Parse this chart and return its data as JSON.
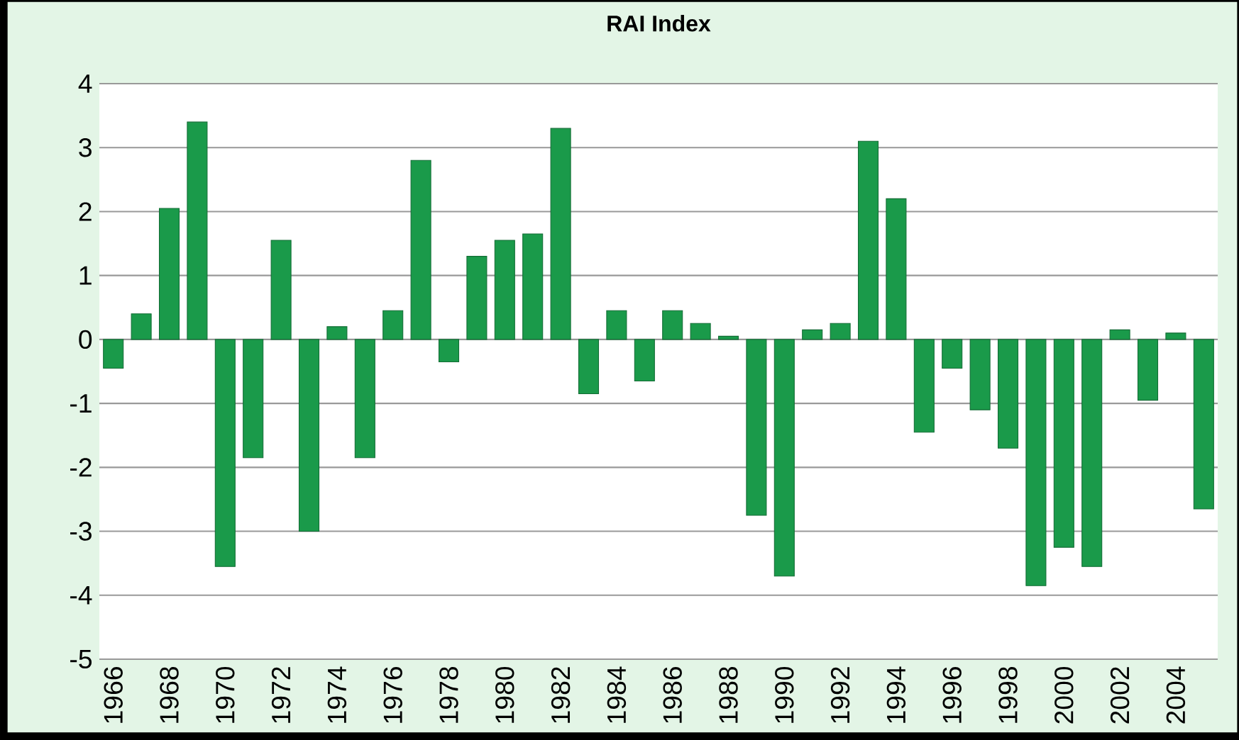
{
  "chart_data": {
    "type": "bar",
    "title": "RAI Index",
    "categories": [
      "1966",
      null,
      "1968",
      null,
      "1970",
      null,
      "1972",
      null,
      "1974",
      null,
      "1976",
      null,
      "1978",
      null,
      "1980",
      null,
      "1982",
      null,
      "1984",
      null,
      "1986",
      null,
      "1988",
      null,
      "1990",
      null,
      "1992",
      null,
      "1994",
      null,
      "1996",
      null,
      "1998",
      null,
      "2000",
      null,
      "2002",
      null,
      "2004",
      null
    ],
    "values": [
      -0.45,
      0.4,
      2.05,
      3.4,
      -3.55,
      -1.85,
      1.55,
      -3.0,
      0.2,
      -1.85,
      0.45,
      2.8,
      -0.35,
      1.3,
      1.55,
      1.65,
      3.3,
      -0.85,
      0.45,
      -0.65,
      0.45,
      0.25,
      0.05,
      -2.75,
      -3.7,
      0.15,
      0.25,
      3.1,
      2.2,
      -1.45,
      -0.45,
      -1.1,
      -1.7,
      -3.85,
      -3.25,
      -3.55,
      0.15,
      -0.95,
      0.1,
      -2.65
    ],
    "color": "#1a9a4a",
    "ylim": [
      -5,
      4
    ],
    "yticks": [
      -5,
      -4,
      -3,
      -2,
      -1,
      0,
      1,
      2,
      3,
      4
    ],
    "grid": "y"
  }
}
